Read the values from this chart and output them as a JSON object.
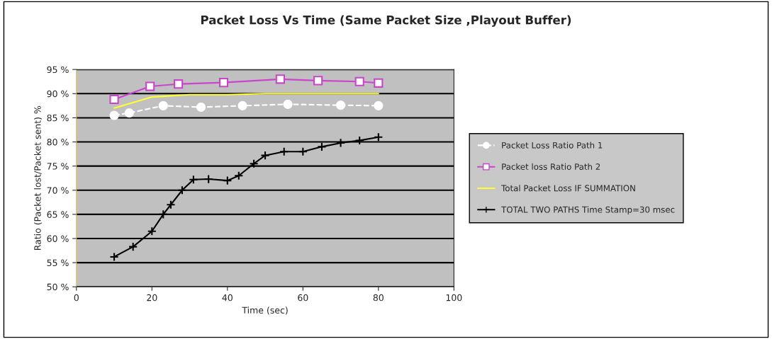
{
  "chart_data": {
    "type": "line",
    "title": "Packet Loss Vs Time (Same Packet Size ,Playout Buffer)",
    "xlabel": "Time (sec)",
    "ylabel": "Ratio (Packet lost/Packet sent) %",
    "xlim": [
      0,
      100
    ],
    "xticks": [
      0,
      20,
      40,
      60,
      80,
      100
    ],
    "ylim": [
      50,
      95
    ],
    "yticks": [
      {
        "value": 50,
        "label": "50 %"
      },
      {
        "value": 55,
        "label": "55 %"
      },
      {
        "value": 60,
        "label": "60 %"
      },
      {
        "value": 65,
        "label": "65 %"
      },
      {
        "value": 70,
        "label": "70 %"
      },
      {
        "value": 75,
        "label": "75 %"
      },
      {
        "value": 80,
        "label": "80 %"
      },
      {
        "value": 85,
        "label": "85 %"
      },
      {
        "value": 90,
        "label": "90 %"
      },
      {
        "value": 95,
        "label": "95 %"
      }
    ],
    "grid": "y",
    "legend": "right",
    "series": [
      {
        "name": "Packet Loss Ratio Path 1",
        "color": "#ffffff",
        "marker": "circle",
        "line_style": "dashed",
        "x": [
          10,
          14,
          23,
          33,
          44,
          56,
          70,
          80
        ],
        "values": [
          85.5,
          86,
          87.5,
          87.2,
          87.5,
          87.8,
          87.6,
          87.5
        ]
      },
      {
        "name": "Packet loss Ratio Path 2",
        "color": "#cc44cc",
        "marker": "square",
        "line_style": "solid",
        "x": [
          10,
          19.5,
          27,
          39,
          54,
          64,
          75,
          80
        ],
        "values": [
          88.8,
          91.5,
          92,
          92.3,
          93,
          92.7,
          92.5,
          92.2
        ]
      },
      {
        "name": "Total Packet Loss IF SUMMATION",
        "color": "#ffff33",
        "marker": "none",
        "line_style": "solid",
        "x": [
          10,
          20,
          30,
          40,
          50,
          60,
          80
        ],
        "values": [
          87,
          89.3,
          89.8,
          89.8,
          90,
          90,
          90
        ]
      },
      {
        "name": "TOTAL TWO PATHS Time Stamp=30 msec",
        "color": "#000000",
        "marker": "cross",
        "line_style": "solid",
        "x": [
          10,
          15,
          20,
          23,
          25,
          28,
          31,
          35,
          40,
          43,
          47,
          50,
          55,
          60,
          65,
          70,
          75,
          80
        ],
        "values": [
          56.2,
          58.3,
          61.5,
          65,
          67,
          70,
          72.2,
          72.3,
          72,
          73,
          75.5,
          77.2,
          78,
          78,
          79,
          79.8,
          80.3,
          81
        ]
      }
    ]
  }
}
